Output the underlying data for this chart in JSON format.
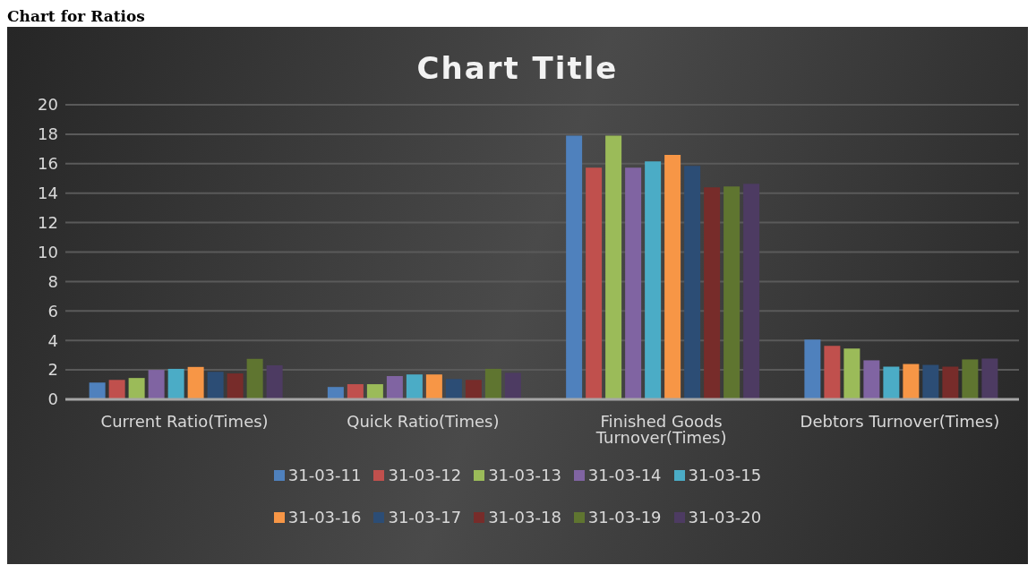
{
  "chart_data": {
    "type": "bar",
    "title": "Chart for Ratios",
    "subtitle": "Chart Title",
    "categories": [
      "Current Ratio(Times)",
      "Quick Ratio(Times)",
      "Finished Goods Turnover(Times)",
      "Debtors Turnover(Times)"
    ],
    "series": [
      {
        "name": "31-03-11",
        "color": "#4f81bd",
        "values": [
          1.14,
          0.84,
          17.9,
          4.06
        ]
      },
      {
        "name": "31-03-12",
        "color": "#c0504d",
        "values": [
          1.32,
          1.03,
          15.73,
          3.63
        ]
      },
      {
        "name": "31-03-13",
        "color": "#9bbb59",
        "values": [
          1.45,
          1.03,
          17.9,
          3.45
        ]
      },
      {
        "name": "31-03-14",
        "color": "#8064a2",
        "values": [
          2.0,
          1.58,
          15.73,
          2.65
        ]
      },
      {
        "name": "31-03-15",
        "color": "#4bacc6",
        "values": [
          2.07,
          1.69,
          16.16,
          2.22
        ]
      },
      {
        "name": "31-03-16",
        "color": "#f79646",
        "values": [
          2.2,
          1.69,
          16.59,
          2.4
        ]
      },
      {
        "name": "31-03-17",
        "color": "#2c4d75",
        "values": [
          1.87,
          1.38,
          15.85,
          2.34
        ]
      },
      {
        "name": "31-03-18",
        "color": "#772c2a",
        "values": [
          1.76,
          1.32,
          14.39,
          2.22
        ]
      },
      {
        "name": "31-03-19",
        "color": "#5f7530",
        "values": [
          2.75,
          2.07,
          14.45,
          2.71
        ]
      },
      {
        "name": "31-03-20",
        "color": "#4d3b62",
        "values": [
          2.31,
          1.8,
          14.63,
          2.77
        ]
      }
    ],
    "ylim": [
      0,
      20
    ],
    "yticks": [
      0,
      2,
      4,
      6,
      8,
      10,
      12,
      14,
      16,
      18,
      20
    ],
    "grid": "y",
    "legend": "bottom"
  }
}
